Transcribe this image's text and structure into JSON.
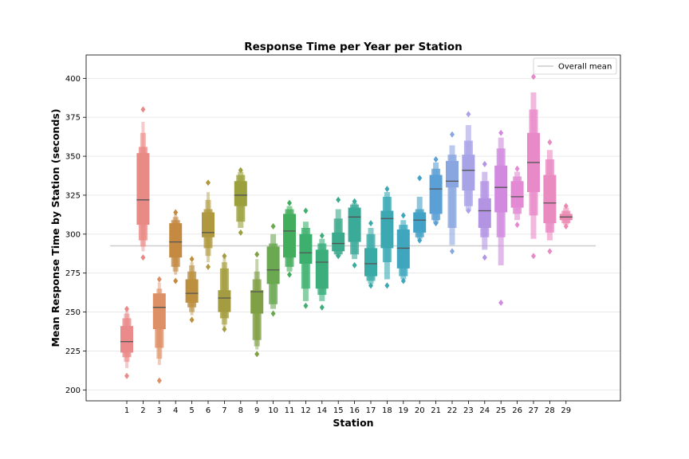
{
  "chart_data": {
    "type": "boxen",
    "title": "Response Time per Year per Station",
    "xlabel": "Station",
    "ylabel": "Mean Response Time by Station (seconds)",
    "ylim": [
      193,
      415
    ],
    "yticks": [
      200,
      225,
      250,
      275,
      300,
      325,
      350,
      375,
      400
    ],
    "grid": "horizontal",
    "legend_position": "top-right",
    "overall_mean": {
      "label": "Overall mean",
      "value": 292.5,
      "color": "#cccccc"
    },
    "categories": [
      "1",
      "2",
      "3",
      "4",
      "5",
      "6",
      "7",
      "8",
      "9",
      "10",
      "11",
      "12",
      "14",
      "15",
      "16",
      "17",
      "18",
      "19",
      "20",
      "21",
      "22",
      "23",
      "24",
      "25",
      "26",
      "27",
      "28",
      "29"
    ],
    "series": [
      {
        "station": "1",
        "color": "#ea8a8a",
        "median": 231,
        "levels": [
          [
            224,
            241
          ],
          [
            221,
            246
          ],
          [
            218,
            249
          ],
          [
            214,
            252
          ]
        ],
        "outliers": [
          252,
          209
        ]
      },
      {
        "station": "2",
        "color": "#e88a86",
        "median": 322,
        "levels": [
          [
            306,
            352
          ],
          [
            296,
            356
          ],
          [
            292,
            365
          ],
          [
            289,
            372
          ]
        ],
        "outliers": [
          380,
          285
        ]
      },
      {
        "station": "3",
        "color": "#dd9066",
        "median": 253,
        "levels": [
          [
            239,
            262
          ],
          [
            227,
            257
          ],
          [
            220,
            265
          ],
          [
            216,
            269
          ]
        ],
        "outliers": [
          271,
          206
        ]
      },
      {
        "station": "4",
        "color": "#c48a42",
        "median": 295,
        "levels": [
          [
            285,
            307
          ],
          [
            279,
            309
          ],
          [
            276,
            311
          ],
          [
            274,
            313
          ]
        ],
        "outliers": [
          314,
          270
        ]
      },
      {
        "station": "5",
        "color": "#bd9040",
        "median": 262,
        "levels": [
          [
            256,
            271
          ],
          [
            253,
            276
          ],
          [
            250,
            280
          ],
          [
            248,
            282
          ]
        ],
        "outliers": [
          284,
          245
        ]
      },
      {
        "station": "6",
        "color": "#b0983e",
        "median": 301,
        "levels": [
          [
            298,
            314
          ],
          [
            291,
            316
          ],
          [
            286,
            322
          ],
          [
            282,
            327
          ]
        ],
        "outliers": [
          333,
          279
        ]
      },
      {
        "station": "7",
        "color": "#a39c40",
        "median": 259,
        "levels": [
          [
            250,
            264
          ],
          [
            246,
            278
          ],
          [
            242,
            282
          ],
          [
            240,
            285
          ]
        ],
        "outliers": [
          286,
          239
        ]
      },
      {
        "station": "8",
        "color": "#9ba03d",
        "median": 325,
        "levels": [
          [
            318,
            334
          ],
          [
            308,
            338
          ],
          [
            304,
            340
          ]
        ],
        "outliers": [
          341,
          301
        ]
      },
      {
        "station": "9",
        "color": "#7fa044",
        "median": 263,
        "levels": [
          [
            249,
            264
          ],
          [
            232,
            271
          ],
          [
            228,
            276
          ],
          [
            226,
            284
          ]
        ],
        "outliers": [
          287,
          223
        ]
      },
      {
        "station": "10",
        "color": "#6aa950",
        "median": 277,
        "levels": [
          [
            268,
            292
          ],
          [
            255,
            294
          ],
          [
            252,
            300
          ]
        ],
        "outliers": [
          305,
          249
        ]
      },
      {
        "station": "11",
        "color": "#42ad5c",
        "median": 302,
        "levels": [
          [
            285,
            313
          ],
          [
            279,
            316
          ],
          [
            276,
            318
          ]
        ],
        "outliers": [
          320,
          274
        ]
      },
      {
        "station": "12",
        "color": "#3daf6e",
        "median": 288,
        "levels": [
          [
            281,
            300
          ],
          [
            265,
            304
          ],
          [
            257,
            308
          ]
        ],
        "outliers": [
          315,
          254
        ]
      },
      {
        "station": "14",
        "color": "#3bae7c",
        "median": 282,
        "levels": [
          [
            265,
            290
          ],
          [
            261,
            294
          ],
          [
            257,
            297
          ]
        ],
        "outliers": [
          299,
          253
        ]
      },
      {
        "station": "15",
        "color": "#3baa8c",
        "median": 294,
        "levels": [
          [
            289,
            301
          ],
          [
            287,
            310
          ],
          [
            286,
            316
          ]
        ],
        "outliers": [
          322,
          286
        ]
      },
      {
        "station": "16",
        "color": "#3aaa99",
        "median": 311,
        "levels": [
          [
            295,
            317
          ],
          [
            287,
            319
          ],
          [
            284,
            320
          ]
        ],
        "outliers": [
          321,
          280
        ]
      },
      {
        "station": "17",
        "color": "#39aaa6",
        "median": 281,
        "levels": [
          [
            273,
            291
          ],
          [
            270,
            300
          ],
          [
            268,
            304
          ]
        ],
        "outliers": [
          307,
          267
        ]
      },
      {
        "station": "18",
        "color": "#3ba8b2",
        "median": 310,
        "levels": [
          [
            291,
            315
          ],
          [
            282,
            324
          ],
          [
            271,
            327
          ]
        ],
        "outliers": [
          329,
          267
        ]
      },
      {
        "station": "19",
        "color": "#3fa6bd",
        "median": 291,
        "levels": [
          [
            278,
            303
          ],
          [
            273,
            306
          ],
          [
            271,
            309
          ]
        ],
        "outliers": [
          312,
          270
        ]
      },
      {
        "station": "20",
        "color": "#42a1c6",
        "median": 309,
        "levels": [
          [
            301,
            314
          ],
          [
            298,
            316
          ],
          [
            297,
            324
          ]
        ],
        "outliers": [
          336,
          296
        ]
      },
      {
        "station": "21",
        "color": "#5a9fd6",
        "median": 329,
        "levels": [
          [
            313,
            338
          ],
          [
            309,
            342
          ],
          [
            307,
            346
          ]
        ],
        "outliers": [
          348,
          307
        ]
      },
      {
        "station": "22",
        "color": "#8aa6e0",
        "median": 334,
        "levels": [
          [
            330,
            347
          ],
          [
            304,
            351
          ],
          [
            293,
            357
          ]
        ],
        "outliers": [
          364,
          289
        ]
      },
      {
        "station": "23",
        "color": "#a8a3e6",
        "median": 341,
        "levels": [
          [
            328,
            351
          ],
          [
            318,
            360
          ],
          [
            315,
            370
          ]
        ],
        "outliers": [
          377,
          315
        ]
      },
      {
        "station": "24",
        "color": "#b394e3",
        "median": 315,
        "levels": [
          [
            304,
            323
          ],
          [
            298,
            334
          ],
          [
            290,
            340
          ]
        ],
        "outliers": [
          345,
          285
        ]
      },
      {
        "station": "25",
        "color": "#d18ae0",
        "median": 330,
        "levels": [
          [
            314,
            344
          ],
          [
            298,
            355
          ],
          [
            280,
            362
          ]
        ],
        "outliers": [
          365,
          256
        ]
      },
      {
        "station": "26",
        "color": "#e48ad4",
        "median": 324,
        "levels": [
          [
            317,
            334
          ],
          [
            313,
            337
          ],
          [
            309,
            340
          ]
        ],
        "outliers": [
          342,
          306
        ]
      },
      {
        "station": "27",
        "color": "#e98ac8",
        "median": 346,
        "levels": [
          [
            327,
            365
          ],
          [
            312,
            380
          ],
          [
            297,
            391
          ]
        ],
        "outliers": [
          401,
          286
        ]
      },
      {
        "station": "28",
        "color": "#e98ac0",
        "median": 320,
        "levels": [
          [
            307,
            338
          ],
          [
            301,
            348
          ],
          [
            296,
            354
          ]
        ],
        "outliers": [
          359,
          289
        ]
      },
      {
        "station": "29",
        "color": "#ea8ab2",
        "median": 311,
        "levels": [
          [
            309,
            313
          ],
          [
            307,
            315
          ],
          [
            306,
            317
          ]
        ],
        "outliers": [
          318,
          305
        ]
      }
    ]
  }
}
